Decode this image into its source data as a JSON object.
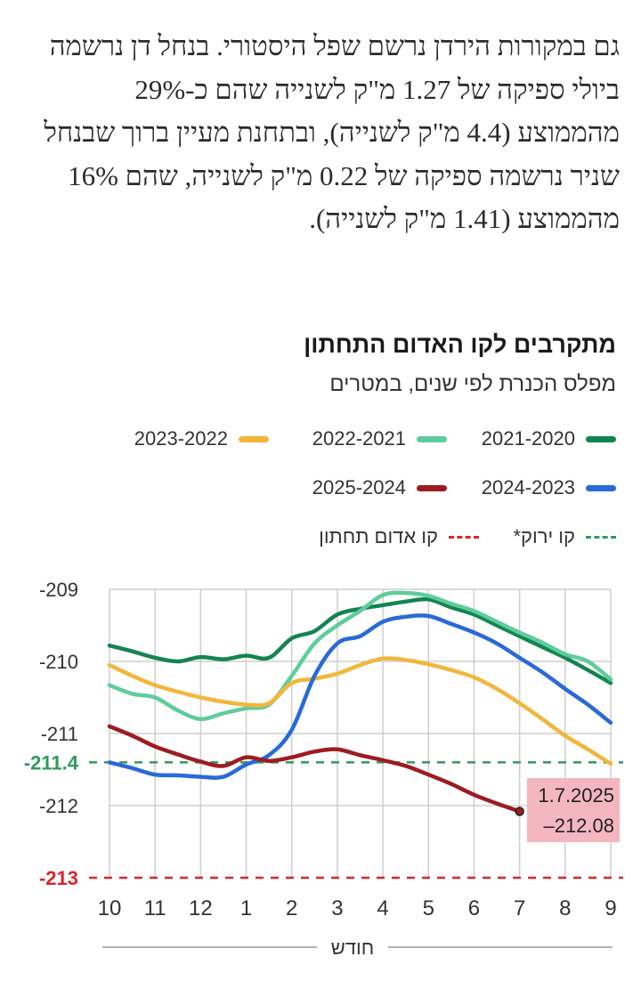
{
  "article": {
    "paragraph": "גם במקורות הירדן נרשם שפל היסטורי. בנחל דן נרשמה ביולי ספיקה של 1.27 מ\"ק לשנייה שהם כ-29% מהממוצע (4.4 מ\"ק לשנייה), ובתחנת מעיין ברוך שבנחל שניר נרשמה ספיקה של 0.22 מ\"ק לשנייה, שהם 16% מהממוצע (1.41 מ\"ק לשנייה)."
  },
  "colors": {
    "s2021": "#138550",
    "s2122": "#5fcc9c",
    "s2223": "#f2b63b",
    "s2324": "#2a6ad8",
    "s2425": "#9c1c22",
    "green_line": "#2f9a5c",
    "red_line": "#d8262e",
    "callout_bg": "#f4b6bf",
    "grid": "#cfcfcf"
  },
  "chart_data": {
    "type": "line",
    "title": "מתקרבים לקו האדום התחתון",
    "subtitle": "מפלס הכנרת לפי שנים, במטרים",
    "xlabel": "חודש",
    "ylabel": "",
    "categories": [
      "10",
      "11",
      "12",
      "1",
      "2",
      "3",
      "4",
      "5",
      "6",
      "7",
      "8",
      "9"
    ],
    "ylim": [
      -213,
      -209
    ],
    "yticks": [
      {
        "value": -209,
        "label": "-209",
        "style": "normal"
      },
      {
        "value": -210,
        "label": "-210",
        "style": "normal"
      },
      {
        "value": -211,
        "label": "-211",
        "style": "normal"
      },
      {
        "value": -211.4,
        "label": "-211.4",
        "style": "green"
      },
      {
        "value": -212,
        "label": "-212",
        "style": "normal"
      },
      {
        "value": -213,
        "label": "-213",
        "style": "red"
      }
    ],
    "reference_lines": [
      {
        "name": "קו ירוק*",
        "value": -211.4,
        "color_key": "green_line"
      },
      {
        "name": "קו אדום תחתון",
        "value": -213,
        "color_key": "red_line"
      }
    ],
    "series": [
      {
        "name": "2021-2020",
        "color_key": "s2021",
        "x": [
          0,
          0.5,
          1,
          1.5,
          2,
          2.5,
          3,
          3.5,
          4,
          4.5,
          5,
          5.5,
          6,
          6.5,
          7,
          7.5,
          8,
          8.5,
          9,
          9.5,
          10,
          10.5,
          11
        ],
        "y": [
          -209.78,
          -209.86,
          -209.95,
          -210,
          -209.94,
          -209.97,
          -209.92,
          -209.95,
          -209.68,
          -209.58,
          -209.35,
          -209.27,
          -209.22,
          -209.17,
          -209.14,
          -209.25,
          -209.35,
          -209.5,
          -209.65,
          -209.8,
          -209.95,
          -210.12,
          -210.3
        ]
      },
      {
        "name": "2022-2021",
        "color_key": "s2122",
        "x": [
          0,
          0.5,
          1,
          1.5,
          2,
          2.5,
          3,
          3.5,
          4,
          4.5,
          5,
          5.5,
          6,
          6.5,
          7,
          7.5,
          8,
          8.5,
          9,
          9.5,
          10,
          10.5,
          11
        ],
        "y": [
          -210.33,
          -210.45,
          -210.5,
          -210.68,
          -210.8,
          -210.72,
          -210.65,
          -210.6,
          -210.2,
          -209.75,
          -209.5,
          -209.3,
          -209.08,
          -209.05,
          -209.09,
          -209.2,
          -209.3,
          -209.45,
          -209.6,
          -209.74,
          -209.9,
          -210,
          -210.25
        ]
      },
      {
        "name": "2023-2022",
        "color_key": "s2223",
        "x": [
          0,
          0.5,
          1,
          1.5,
          2,
          2.5,
          3,
          3.5,
          4,
          4.5,
          5,
          5.5,
          6,
          6.5,
          7,
          7.5,
          8,
          8.5,
          9,
          9.5,
          10,
          10.5,
          11
        ],
        "y": [
          -210.05,
          -210.2,
          -210.33,
          -210.42,
          -210.5,
          -210.56,
          -210.6,
          -210.58,
          -210.3,
          -210.24,
          -210.17,
          -210.05,
          -209.96,
          -209.98,
          -210.04,
          -210.12,
          -210.22,
          -210.38,
          -210.58,
          -210.8,
          -211.03,
          -211.22,
          -211.42
        ]
      },
      {
        "name": "2024-2023",
        "color_key": "s2324",
        "x": [
          0,
          0.5,
          1,
          1.5,
          2,
          2.5,
          3,
          3.5,
          4,
          4.5,
          5,
          5.5,
          6,
          6.5,
          7,
          7.5,
          8,
          8.5,
          9,
          9.5,
          10,
          10.5,
          11
        ],
        "y": [
          -211.4,
          -211.48,
          -211.57,
          -211.58,
          -211.6,
          -211.6,
          -211.43,
          -211.3,
          -210.95,
          -210.2,
          -209.75,
          -209.65,
          -209.45,
          -209.38,
          -209.37,
          -209.48,
          -209.6,
          -209.75,
          -209.95,
          -210.15,
          -210.38,
          -210.6,
          -210.85
        ]
      },
      {
        "name": "2025-2024",
        "color_key": "s2425",
        "x": [
          0,
          0.5,
          1,
          1.5,
          2,
          2.5,
          3,
          3.5,
          4,
          4.5,
          5,
          5.5,
          6,
          6.5,
          7,
          7.5,
          8,
          8.5,
          9
        ],
        "y": [
          -210.9,
          -211.03,
          -211.18,
          -211.29,
          -211.39,
          -211.45,
          -211.33,
          -211.38,
          -211.33,
          -211.25,
          -211.22,
          -211.3,
          -211.37,
          -211.45,
          -211.57,
          -211.7,
          -211.85,
          -211.97,
          -212.08
        ]
      }
    ],
    "callout": {
      "line1": "1.7.2025",
      "line2": "–212.08",
      "x": 9,
      "y": -212.08
    }
  }
}
